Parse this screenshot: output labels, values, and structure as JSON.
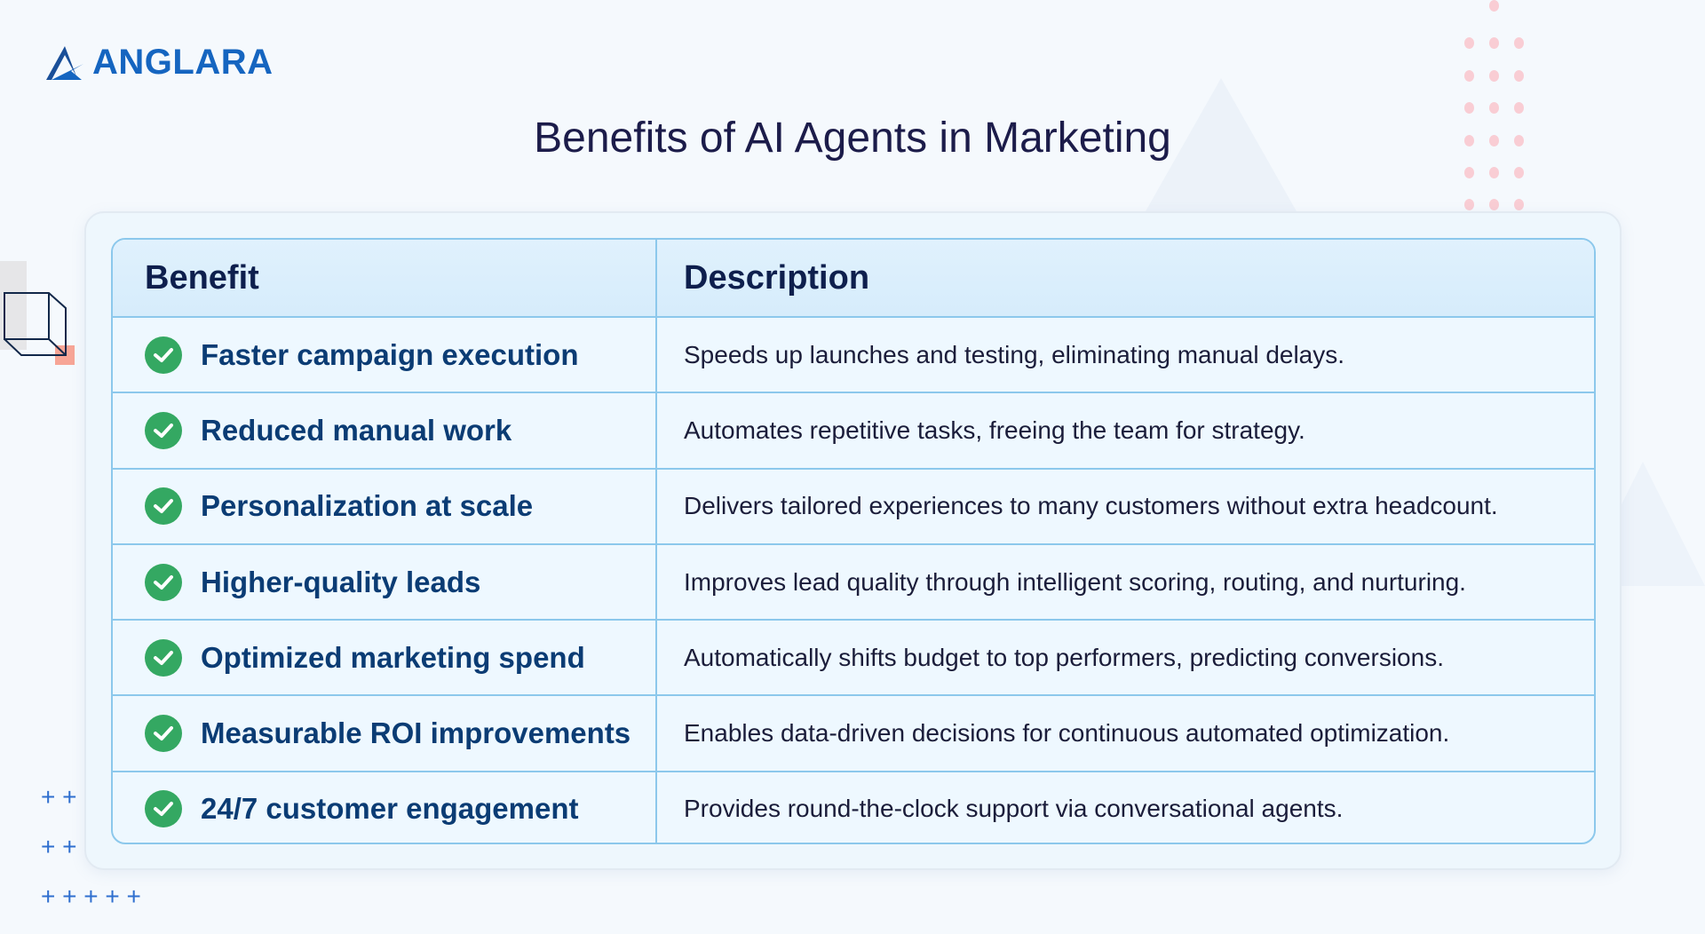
{
  "brand": {
    "name": "ANGLARA",
    "color": "#1565c0"
  },
  "title": "Benefits of AI Agents in Marketing",
  "table": {
    "headers": [
      "Benefit",
      "Description"
    ],
    "rows": [
      {
        "benefit": "Faster campaign execution",
        "description": "Speeds up launches and testing, eliminating manual delays."
      },
      {
        "benefit": "Reduced manual work",
        "description": "Automates repetitive tasks, freeing the team for strategy."
      },
      {
        "benefit": "Personalization at scale",
        "description": "Delivers tailored experiences to many customers without extra headcount."
      },
      {
        "benefit": "Higher-quality leads",
        "description": "Improves lead quality through intelligent scoring, routing, and nurturing."
      },
      {
        "benefit": "Optimized marketing spend",
        "description": "Automatically shifts budget to top performers, predicting conversions."
      },
      {
        "benefit": "Measurable ROI improvements",
        "description": "Enables data-driven decisions for continuous automated optimization."
      },
      {
        "benefit": "24/7 customer engagement",
        "description": "Provides round-the-clock support via conversational agents."
      }
    ],
    "row_icon": "check-circle-icon",
    "check_color": "#34a862"
  }
}
